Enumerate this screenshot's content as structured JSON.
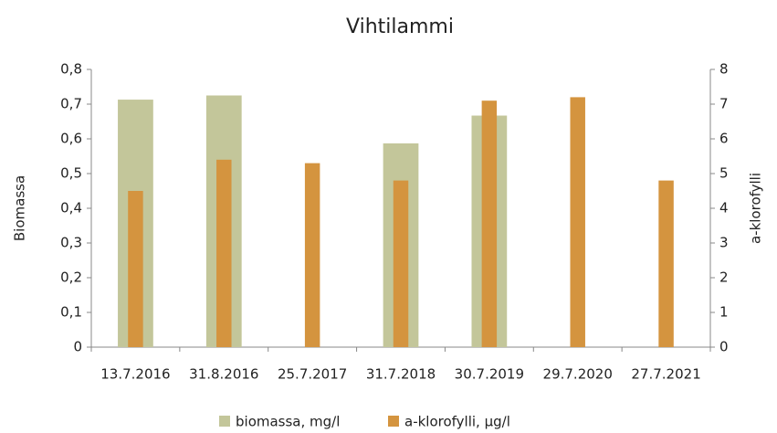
{
  "chart_data": {
    "type": "bar",
    "title": "Vihtilammi",
    "categories": [
      "13.7.2016",
      "31.8.2016",
      "25.7.2017",
      "31.7.2018",
      "30.7.2019",
      "29.7.2020",
      "27.7.2021"
    ],
    "series": [
      {
        "name": "biomassa, mg/l",
        "color": "#c3c69a",
        "values": [
          0.713,
          0.725,
          null,
          0.587,
          0.667,
          null,
          null
        ]
      },
      {
        "name": "a-klorofylli, µg/l",
        "color": "#d4943f",
        "axis": "y2",
        "values": [
          4.5,
          5.4,
          5.3,
          4.8,
          7.1,
          7.2,
          4.8
        ]
      }
    ],
    "ylabel": "Biomassa",
    "y2label": "a-klorofylli",
    "ylim": [
      0,
      0.8
    ],
    "yticks": [
      0,
      {
        "value": 0.1,
        "label": "0,1"
      },
      {
        "value": 0.2,
        "label": "0,2"
      },
      {
        "value": 0.3,
        "label": "0,3"
      },
      {
        "value": 0.4,
        "label": "0,4"
      },
      {
        "value": 0.5,
        "label": "0,5"
      },
      {
        "value": 0.6,
        "label": "0,6"
      },
      {
        "value": 0.7,
        "label": "0,7"
      },
      {
        "value": 0.8,
        "label": "0,8"
      }
    ],
    "y2lim": [
      0,
      8
    ],
    "y2ticks": [
      0,
      1,
      2,
      3,
      4,
      5,
      6,
      7,
      8
    ],
    "legend": "bottom"
  }
}
